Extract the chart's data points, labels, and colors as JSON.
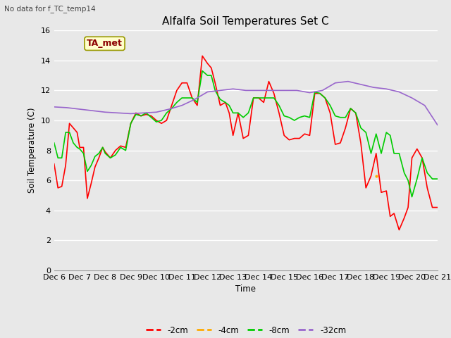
{
  "title": "Alfalfa Soil Temperatures Set C",
  "ylabel": "Soil Temperature (C)",
  "xlabel": "Time",
  "note": "No data for f_TC_temp14",
  "annotation": "TA_met",
  "ylim": [
    0,
    16
  ],
  "background_color": "#e8e8e8",
  "x_labels": [
    "Dec 6",
    "Dec 7",
    "Dec 8",
    "Dec 9",
    "Dec 10",
    "Dec 11",
    "Dec 12",
    "Dec 13",
    "Dec 14",
    "Dec 15",
    "Dec 16",
    "Dec 17",
    "Dec 18",
    "Dec 19",
    "Dec 20",
    "Dec 21"
  ],
  "series": {
    "neg2cm": {
      "color": "#ff0000",
      "label": "-2cm",
      "x": [
        0,
        0.15,
        0.3,
        0.45,
        0.6,
        0.75,
        0.9,
        1.0,
        1.15,
        1.3,
        1.45,
        1.6,
        1.75,
        1.9,
        2.0,
        2.2,
        2.4,
        2.6,
        2.8,
        3.0,
        3.2,
        3.4,
        3.6,
        3.8,
        4.0,
        4.2,
        4.4,
        4.6,
        4.8,
        5.0,
        5.2,
        5.4,
        5.6,
        5.8,
        6.0,
        6.15,
        6.3,
        6.5,
        6.7,
        6.85,
        7.0,
        7.2,
        7.4,
        7.6,
        7.8,
        8.0,
        8.2,
        8.4,
        8.6,
        8.8,
        9.0,
        9.2,
        9.4,
        9.6,
        9.8,
        10.0,
        10.2,
        10.4,
        10.6,
        10.8,
        11.0,
        11.2,
        11.4,
        11.6,
        11.8,
        12.0,
        12.2,
        12.4,
        12.6,
        12.8,
        13.0,
        13.15,
        13.3,
        13.5,
        13.7,
        13.85,
        14.0,
        14.2,
        14.4,
        14.6,
        14.8,
        15.0
      ],
      "y": [
        7.1,
        5.5,
        5.6,
        7.0,
        9.8,
        9.5,
        9.2,
        8.2,
        8.2,
        4.8,
        5.8,
        6.9,
        7.5,
        8.2,
        7.9,
        7.5,
        8.0,
        8.3,
        8.2,
        9.8,
        10.5,
        10.3,
        10.4,
        10.3,
        10.0,
        9.8,
        10.0,
        11.0,
        12.0,
        12.5,
        12.5,
        11.5,
        11.0,
        14.3,
        13.8,
        13.5,
        12.5,
        11.0,
        11.2,
        10.5,
        9.0,
        10.5,
        8.8,
        9.0,
        11.5,
        11.5,
        11.2,
        12.6,
        11.8,
        10.5,
        9.0,
        8.7,
        8.8,
        8.8,
        9.1,
        9.0,
        11.8,
        11.8,
        11.5,
        10.5,
        8.4,
        8.5,
        9.5,
        10.8,
        10.5,
        8.5,
        5.5,
        6.3,
        7.8,
        5.2,
        5.3,
        3.6,
        3.8,
        2.7,
        3.5,
        4.2,
        7.5,
        8.1,
        7.5,
        5.5,
        4.2,
        4.2
      ]
    },
    "neg4cm": {
      "color": "#ffaa00",
      "label": "-4cm",
      "x": [
        12.6
      ],
      "y": [
        6.3
      ]
    },
    "neg8cm": {
      "color": "#00cc00",
      "label": "-8cm",
      "x": [
        0,
        0.15,
        0.3,
        0.45,
        0.6,
        0.75,
        0.9,
        1.0,
        1.15,
        1.3,
        1.45,
        1.6,
        1.75,
        1.9,
        2.0,
        2.2,
        2.4,
        2.6,
        2.8,
        3.0,
        3.2,
        3.4,
        3.6,
        3.8,
        4.0,
        4.2,
        4.4,
        4.6,
        4.8,
        5.0,
        5.2,
        5.4,
        5.6,
        5.8,
        6.0,
        6.15,
        6.3,
        6.5,
        6.7,
        6.85,
        7.0,
        7.2,
        7.4,
        7.6,
        7.8,
        8.0,
        8.2,
        8.4,
        8.6,
        8.8,
        9.0,
        9.2,
        9.4,
        9.6,
        9.8,
        10.0,
        10.2,
        10.4,
        10.6,
        10.8,
        11.0,
        11.2,
        11.4,
        11.6,
        11.8,
        12.0,
        12.2,
        12.4,
        12.6,
        12.8,
        13.0,
        13.15,
        13.3,
        13.5,
        13.7,
        13.85,
        14.0,
        14.2,
        14.4,
        14.6,
        14.8,
        15.0
      ],
      "y": [
        8.5,
        7.5,
        7.5,
        9.2,
        9.2,
        8.5,
        8.2,
        8.1,
        7.8,
        6.6,
        7.0,
        7.6,
        7.8,
        8.2,
        7.8,
        7.5,
        7.7,
        8.2,
        8.0,
        9.8,
        10.4,
        10.3,
        10.5,
        10.2,
        9.9,
        10.0,
        10.5,
        10.8,
        11.2,
        11.5,
        11.5,
        11.5,
        11.2,
        13.3,
        13.0,
        13.0,
        12.0,
        11.4,
        11.2,
        11.0,
        10.5,
        10.5,
        10.2,
        10.5,
        11.5,
        11.5,
        11.5,
        11.5,
        11.5,
        11.0,
        10.3,
        10.2,
        10.0,
        10.2,
        10.3,
        10.2,
        11.9,
        11.8,
        11.5,
        11.0,
        10.3,
        10.2,
        10.2,
        10.8,
        10.5,
        9.5,
        9.2,
        7.8,
        9.1,
        7.8,
        9.2,
        9.0,
        7.8,
        7.8,
        6.5,
        6.0,
        4.9,
        6.1,
        7.5,
        6.5,
        6.1,
        6.1
      ]
    },
    "neg32cm": {
      "color": "#9966cc",
      "label": "-32cm",
      "x": [
        0,
        0.5,
        1.0,
        1.5,
        2.0,
        2.5,
        3.0,
        3.5,
        4.0,
        4.5,
        5.0,
        5.5,
        6.0,
        6.5,
        7.0,
        7.5,
        8.0,
        8.5,
        9.0,
        9.5,
        10.0,
        10.5,
        11.0,
        11.5,
        12.0,
        12.5,
        13.0,
        13.5,
        14.0,
        14.5,
        15.0
      ],
      "y": [
        10.9,
        10.85,
        10.75,
        10.65,
        10.55,
        10.5,
        10.45,
        10.5,
        10.55,
        10.75,
        11.0,
        11.4,
        11.9,
        12.0,
        12.1,
        12.0,
        12.0,
        12.0,
        12.0,
        12.0,
        11.85,
        12.0,
        12.5,
        12.6,
        12.4,
        12.2,
        12.1,
        11.9,
        11.5,
        11.0,
        9.7
      ]
    }
  }
}
